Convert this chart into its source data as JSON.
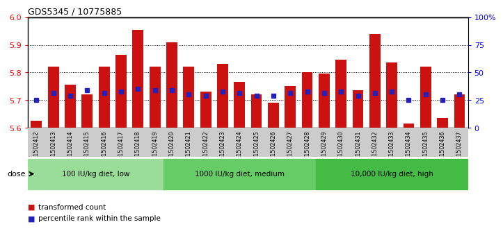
{
  "title": "GDS5345 / 10775885",
  "samples": [
    "GSM1502412",
    "GSM1502413",
    "GSM1502414",
    "GSM1502415",
    "GSM1502416",
    "GSM1502417",
    "GSM1502418",
    "GSM1502419",
    "GSM1502420",
    "GSM1502421",
    "GSM1502422",
    "GSM1502423",
    "GSM1502424",
    "GSM1502425",
    "GSM1502426",
    "GSM1502427",
    "GSM1502428",
    "GSM1502429",
    "GSM1502430",
    "GSM1502431",
    "GSM1502432",
    "GSM1502433",
    "GSM1502434",
    "GSM1502435",
    "GSM1502436",
    "GSM1502437"
  ],
  "bar_tops": [
    5.625,
    5.82,
    5.755,
    5.72,
    5.82,
    5.865,
    5.955,
    5.82,
    5.91,
    5.82,
    5.73,
    5.83,
    5.765,
    5.72,
    5.69,
    5.75,
    5.8,
    5.795,
    5.845,
    5.735,
    5.94,
    5.835,
    5.615,
    5.82,
    5.635,
    5.72
  ],
  "percentile_vals": [
    5.7,
    5.725,
    5.715,
    5.735,
    5.725,
    5.73,
    5.74,
    5.735,
    5.735,
    5.72,
    5.715,
    5.73,
    5.725,
    5.715,
    5.715,
    5.725,
    5.73,
    5.725,
    5.73,
    5.715,
    5.725,
    5.73,
    5.7,
    5.72,
    5.7,
    5.72
  ],
  "ylim": [
    5.6,
    6.0
  ],
  "yticks_left": [
    5.6,
    5.7,
    5.8,
    5.9,
    6.0
  ],
  "yticks_right_vals": [
    0,
    25,
    50,
    75,
    100
  ],
  "yticks_right_positions": [
    5.6,
    5.7,
    5.8,
    5.9,
    6.0
  ],
  "bar_color": "#cc1111",
  "dot_color": "#2222bb",
  "bg_color": "#ffffff",
  "tick_area_color": "#cccccc",
  "dose_groups": [
    {
      "label": "100 IU/kg diet, low",
      "start": 0,
      "end": 8,
      "color": "#99dd99"
    },
    {
      "label": "1000 IU/kg diet, medium",
      "start": 8,
      "end": 17,
      "color": "#66cc66"
    },
    {
      "label": "10,000 IU/kg diet, high",
      "start": 17,
      "end": 26,
      "color": "#44bb44"
    }
  ],
  "legend_items": [
    {
      "label": "transformed count",
      "color": "#cc1111"
    },
    {
      "label": "percentile rank within the sample",
      "color": "#2222bb"
    }
  ],
  "dose_label": "dose",
  "bar_width": 0.65,
  "dot_size": 4
}
